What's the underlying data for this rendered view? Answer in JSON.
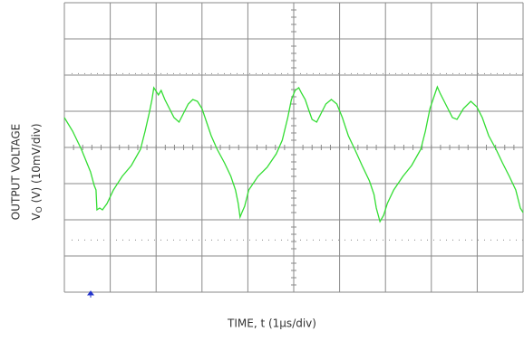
{
  "chart_data": {
    "type": "line",
    "x_label": "TIME, t (1µs/div)",
    "y_label_title": "OUTPUT VOLTAGE",
    "y_label_symbol": "V",
    "y_label_subscript": "O",
    "y_label_rest": " (V) (10mV/div)",
    "xlim": [
      0,
      10
    ],
    "xticks": [
      0,
      1,
      2,
      3,
      4,
      5,
      6,
      7,
      8,
      9,
      10
    ],
    "ylim": [
      -40,
      40
    ],
    "yticks": [
      -40,
      -30,
      -20,
      -10,
      0,
      10,
      20,
      30,
      40
    ],
    "grid": true,
    "series": [
      {
        "color": "#33dd33",
        "x": [
          0,
          0.18,
          0.37,
          0.57,
          0.65,
          0.69,
          0.71,
          0.77,
          0.83,
          0.93,
          1.07,
          1.26,
          1.46,
          1.66,
          1.76,
          1.85,
          1.91,
          1.95,
          1.99,
          2.05,
          2.11,
          2.19,
          2.31,
          2.39,
          2.5,
          2.6,
          2.7,
          2.8,
          2.9,
          3.0,
          3.1,
          3.2,
          3.33,
          3.49,
          3.63,
          3.73,
          3.79,
          3.83,
          3.87,
          3.93,
          4.02,
          4.22,
          4.42,
          4.62,
          4.75,
          4.87,
          4.95,
          5.03,
          5.11,
          5.17,
          5.25,
          5.33,
          5.4,
          5.5,
          5.6,
          5.7,
          5.82,
          5.94,
          6.06,
          6.19,
          6.33,
          6.49,
          6.65,
          6.75,
          6.8,
          6.88,
          6.96,
          7.04,
          7.18,
          7.38,
          7.57,
          7.77,
          7.87,
          7.97,
          8.07,
          8.13,
          8.19,
          8.26,
          8.36,
          8.46,
          8.56,
          8.7,
          8.86,
          8.99,
          9.11,
          9.25,
          9.41,
          9.55,
          9.7,
          9.84,
          9.94,
          10
        ],
        "values": [
          8.25,
          4.5,
          -0.5,
          -6.75,
          -10.5,
          -11.75,
          -17.25,
          -16.75,
          -17.25,
          -15.5,
          -11.75,
          -8,
          -5,
          -0.5,
          4.5,
          9.5,
          13.25,
          16.5,
          15.75,
          14.5,
          15.75,
          13.25,
          10.25,
          8.25,
          7,
          9.5,
          12,
          13.25,
          12.75,
          10.75,
          7,
          3.25,
          -0.5,
          -4.25,
          -8,
          -11.75,
          -15.5,
          -19.25,
          -18,
          -16.25,
          -11.75,
          -8,
          -5.5,
          -1.75,
          2,
          8.25,
          13.25,
          15.75,
          16.5,
          15,
          13.25,
          10.25,
          7.75,
          7,
          9.5,
          12,
          13.25,
          12,
          8.25,
          3.25,
          -0.5,
          -5,
          -9.25,
          -13,
          -16.75,
          -20.5,
          -18.75,
          -15.5,
          -11.75,
          -8,
          -5,
          -0.5,
          4.5,
          10.75,
          14.5,
          16.75,
          15,
          13.25,
          10.75,
          8.25,
          7.75,
          10.75,
          12.75,
          11.25,
          8.25,
          3.25,
          -0.5,
          -4.25,
          -8,
          -11.75,
          -16.75,
          -18
        ]
      }
    ]
  }
}
